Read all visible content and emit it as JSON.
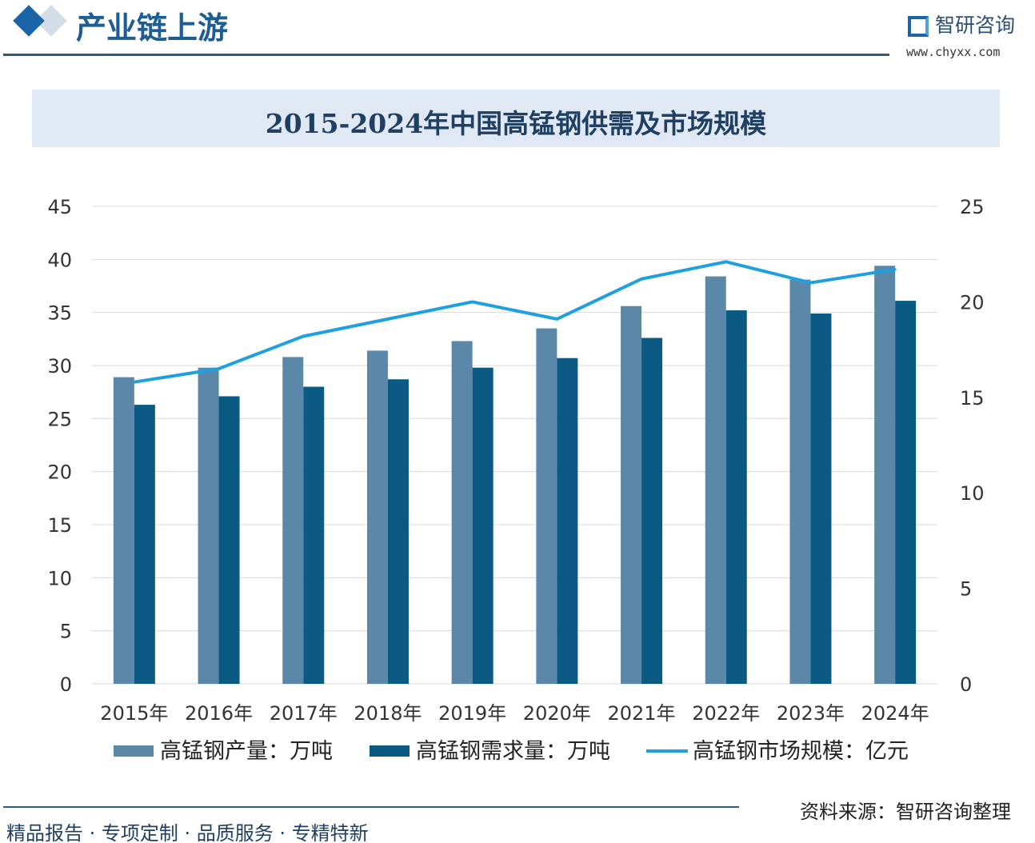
{
  "header": {
    "section_title": "产业链上游",
    "brand_name": "智研咨询",
    "brand_url": "www.chyxx.com"
  },
  "footer": {
    "source": "资料来源：智研咨询整理",
    "slogan": "精品报告 · 专项定制 · 品质服务 · 专精特新"
  },
  "colors": {
    "production": "#5b88a8",
    "demand": "#0b5a84",
    "market": "#1ea0e0",
    "accent": "#1c64a8"
  },
  "chart_data": {
    "type": "bar+line",
    "title": "2015-2024年中国高锰钢供需及市场规模",
    "categories": [
      "2015年",
      "2016年",
      "2017年",
      "2018年",
      "2019年",
      "2020年",
      "2021年",
      "2022年",
      "2023年",
      "2024年"
    ],
    "y_left": {
      "range": [
        0,
        45
      ],
      "ticks": [
        "0",
        "5",
        "10",
        "15",
        "20",
        "25",
        "30",
        "35",
        "40",
        "45"
      ]
    },
    "y_right": {
      "range": [
        0,
        25
      ],
      "ticks": [
        "0",
        "5",
        "10",
        "15",
        "20",
        "25"
      ]
    },
    "grid": true,
    "legend_position": "bottom",
    "series": [
      {
        "name": "高锰钢产量：万吨",
        "type": "bar",
        "axis": "left",
        "values": [
          28.9,
          29.8,
          30.8,
          31.4,
          32.3,
          33.5,
          35.6,
          38.4,
          38.1,
          39.4
        ]
      },
      {
        "name": "高锰钢需求量：万吨",
        "type": "bar",
        "axis": "left",
        "values": [
          26.3,
          27.1,
          28.0,
          28.7,
          29.8,
          30.7,
          32.6,
          35.2,
          34.9,
          36.1
        ]
      },
      {
        "name": "高锰钢市场规模：亿元",
        "type": "line",
        "axis": "right",
        "values": [
          15.8,
          16.5,
          18.2,
          19.1,
          20.0,
          19.1,
          21.2,
          22.1,
          21.0,
          21.7
        ]
      }
    ]
  }
}
